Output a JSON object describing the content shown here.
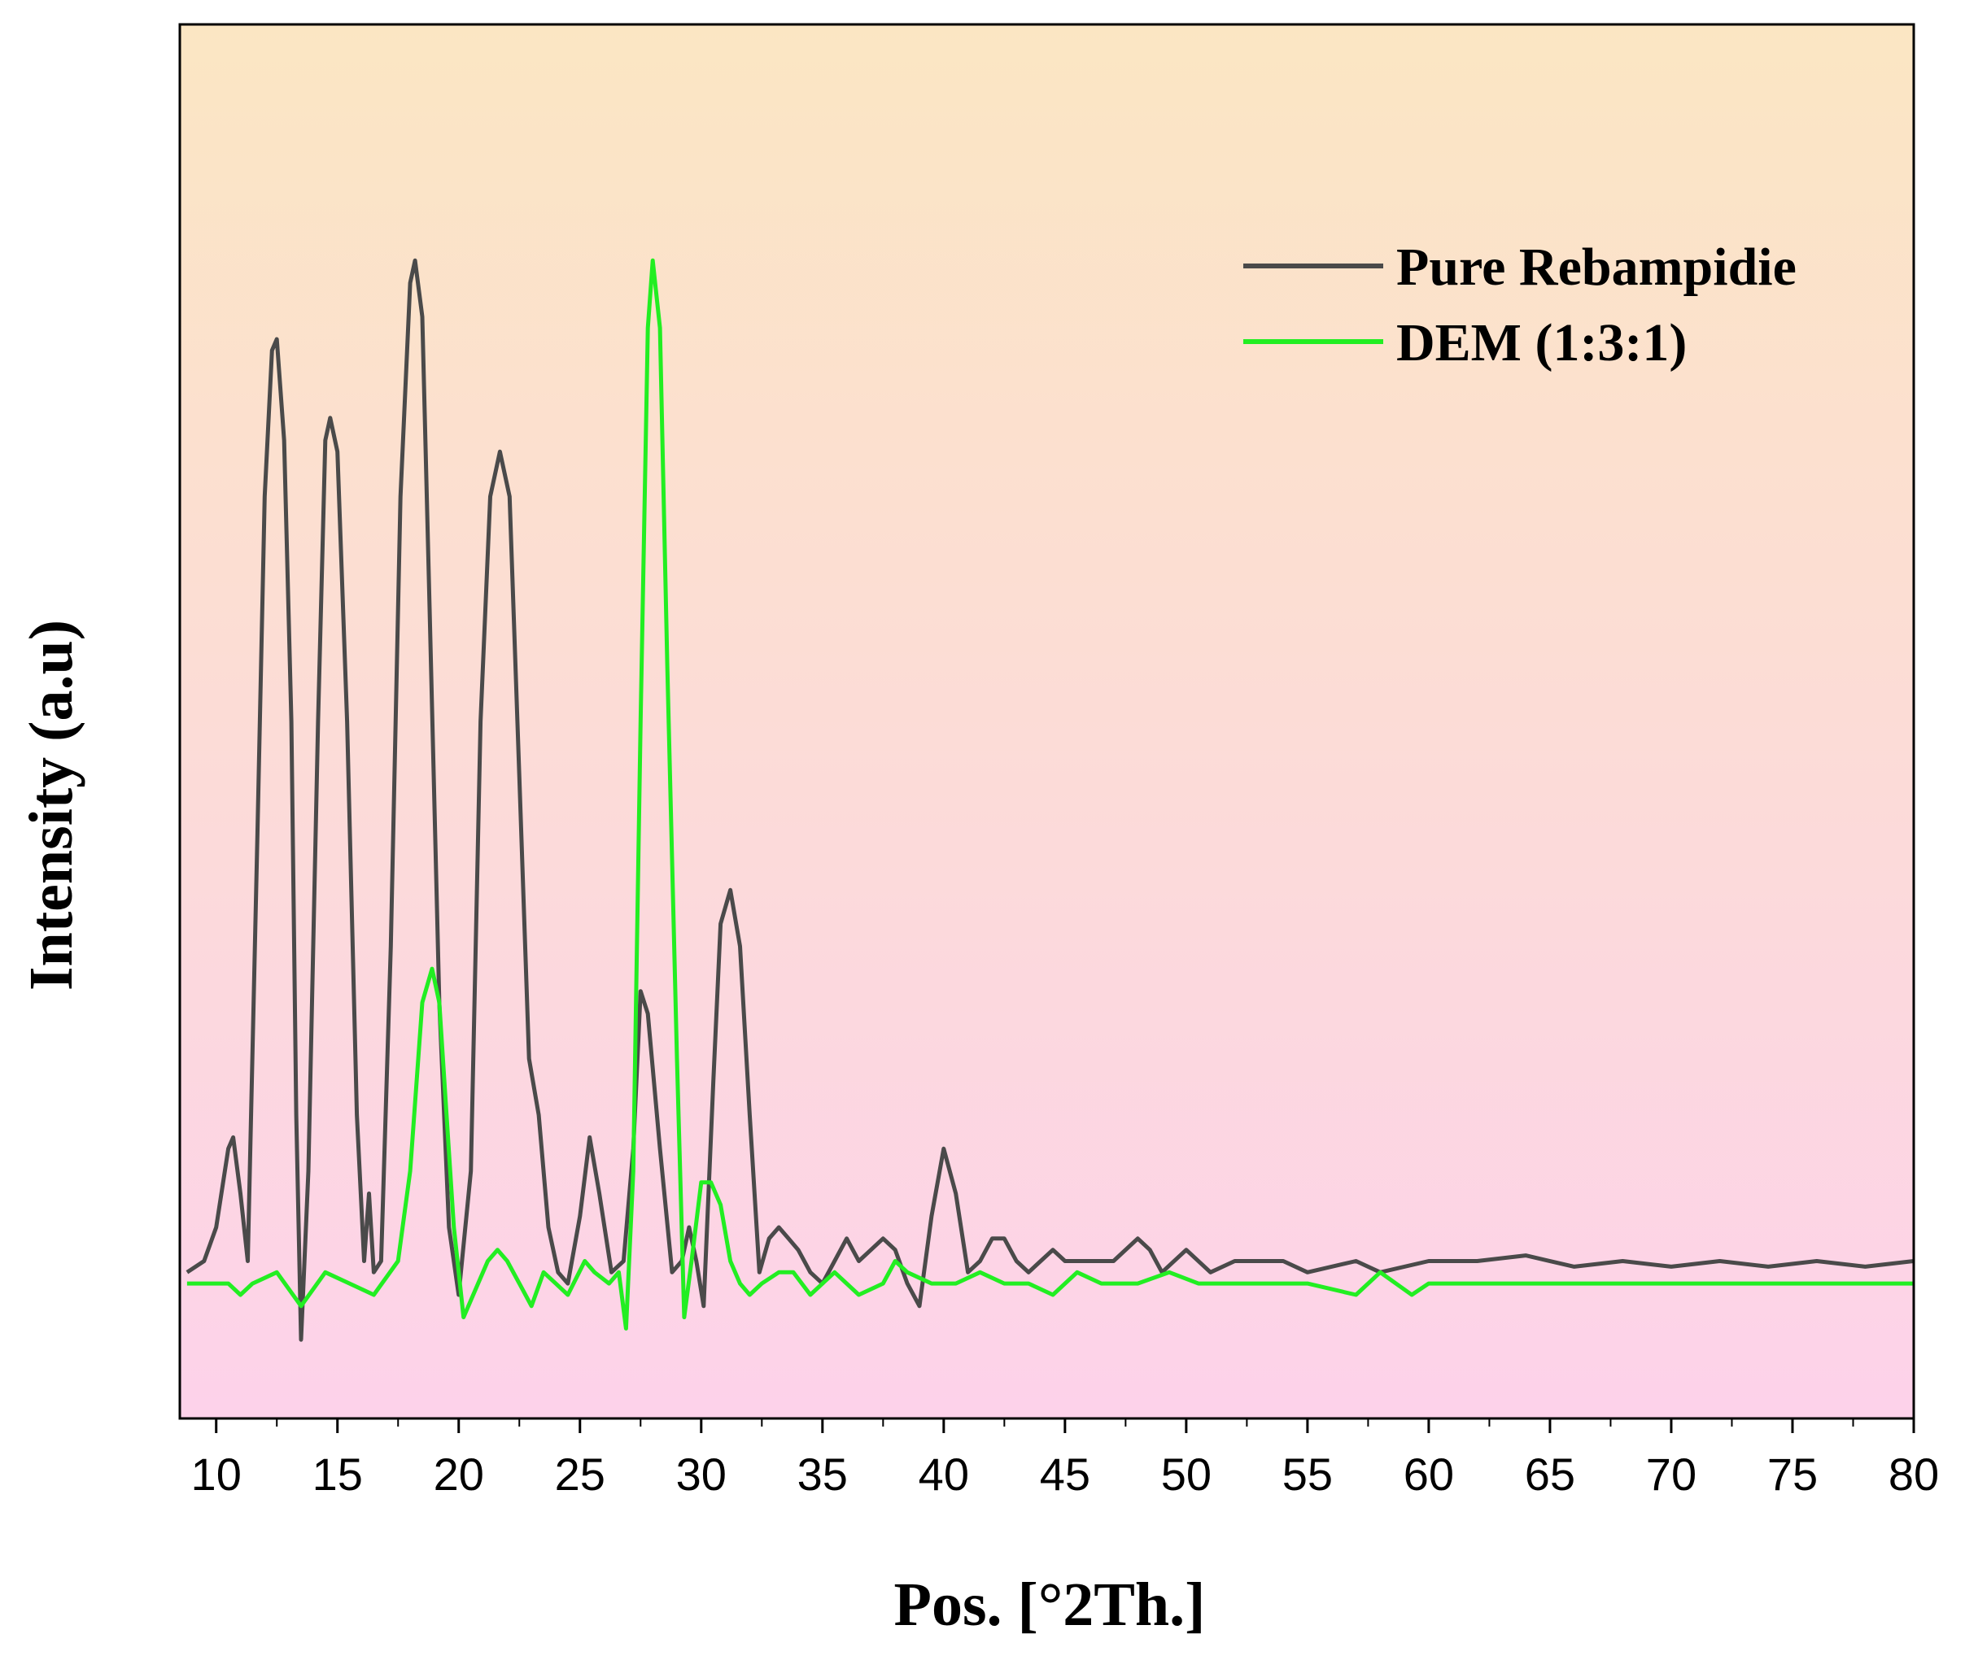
{
  "chart_data": {
    "type": "line",
    "title": "",
    "xlabel": "Pos. [°2Th.]",
    "ylabel": "Intensity (a.u)",
    "xlim": [
      8.5,
      80
    ],
    "ylim": [
      -0.12,
      1.12
    ],
    "x_ticks": [
      "10",
      "15",
      "20",
      "25",
      "30",
      "35",
      "40",
      "45",
      "50",
      "55",
      "60",
      "65",
      "70",
      "75",
      "80"
    ],
    "y_ticks_shown": false,
    "grid": false,
    "legend_position": "top-right",
    "background": {
      "top_color": "#fbe6c3",
      "bottom_color": "#fdd2ea"
    },
    "series": [
      {
        "name": "Pure Rebampidie",
        "color": "#4a4a4a",
        "points": [
          [
            8.8,
            0.01
          ],
          [
            9.5,
            0.02
          ],
          [
            10.0,
            0.05
          ],
          [
            10.5,
            0.12
          ],
          [
            10.7,
            0.13
          ],
          [
            11.0,
            0.08
          ],
          [
            11.3,
            0.02
          ],
          [
            11.7,
            0.4
          ],
          [
            12.0,
            0.7
          ],
          [
            12.3,
            0.83
          ],
          [
            12.5,
            0.84
          ],
          [
            12.8,
            0.75
          ],
          [
            13.1,
            0.5
          ],
          [
            13.3,
            0.15
          ],
          [
            13.5,
            -0.05
          ],
          [
            13.8,
            0.1
          ],
          [
            14.2,
            0.5
          ],
          [
            14.5,
            0.75
          ],
          [
            14.7,
            0.77
          ],
          [
            15.0,
            0.74
          ],
          [
            15.4,
            0.5
          ],
          [
            15.8,
            0.15
          ],
          [
            16.1,
            0.02
          ],
          [
            16.3,
            0.08
          ],
          [
            16.5,
            0.01
          ],
          [
            16.8,
            0.02
          ],
          [
            17.2,
            0.3
          ],
          [
            17.6,
            0.7
          ],
          [
            18.0,
            0.89
          ],
          [
            18.2,
            0.91
          ],
          [
            18.5,
            0.86
          ],
          [
            18.8,
            0.6
          ],
          [
            19.2,
            0.25
          ],
          [
            19.6,
            0.05
          ],
          [
            20.0,
            -0.01
          ],
          [
            20.5,
            0.1
          ],
          [
            20.9,
            0.5
          ],
          [
            21.3,
            0.7
          ],
          [
            21.7,
            0.74
          ],
          [
            22.1,
            0.7
          ],
          [
            22.5,
            0.45
          ],
          [
            22.9,
            0.2
          ],
          [
            23.3,
            0.15
          ],
          [
            23.7,
            0.05
          ],
          [
            24.1,
            0.01
          ],
          [
            24.5,
            0.0
          ],
          [
            25.0,
            0.06
          ],
          [
            25.4,
            0.13
          ],
          [
            25.8,
            0.08
          ],
          [
            26.3,
            0.01
          ],
          [
            26.8,
            0.02
          ],
          [
            27.2,
            0.12
          ],
          [
            27.5,
            0.26
          ],
          [
            27.8,
            0.24
          ],
          [
            28.3,
            0.12
          ],
          [
            28.8,
            0.01
          ],
          [
            29.2,
            0.02
          ],
          [
            29.5,
            0.05
          ],
          [
            29.8,
            0.02
          ],
          [
            30.1,
            -0.02
          ],
          [
            30.5,
            0.18
          ],
          [
            30.8,
            0.32
          ],
          [
            31.2,
            0.35
          ],
          [
            31.6,
            0.3
          ],
          [
            32.0,
            0.15
          ],
          [
            32.4,
            0.01
          ],
          [
            32.8,
            0.04
          ],
          [
            33.2,
            0.05
          ],
          [
            33.6,
            0.04
          ],
          [
            34.0,
            0.03
          ],
          [
            34.5,
            0.01
          ],
          [
            35.0,
            0.0
          ],
          [
            35.5,
            0.02
          ],
          [
            36.0,
            0.04
          ],
          [
            36.5,
            0.02
          ],
          [
            37.0,
            0.03
          ],
          [
            37.5,
            0.04
          ],
          [
            38.0,
            0.03
          ],
          [
            38.5,
            0.0
          ],
          [
            39.0,
            -0.02
          ],
          [
            39.5,
            0.06
          ],
          [
            40.0,
            0.12
          ],
          [
            40.5,
            0.08
          ],
          [
            41.0,
            0.01
          ],
          [
            41.5,
            0.02
          ],
          [
            42.0,
            0.04
          ],
          [
            42.5,
            0.04
          ],
          [
            43.0,
            0.02
          ],
          [
            43.5,
            0.01
          ],
          [
            44.0,
            0.02
          ],
          [
            44.5,
            0.03
          ],
          [
            45.0,
            0.02
          ],
          [
            46.0,
            0.02
          ],
          [
            47.0,
            0.02
          ],
          [
            48.0,
            0.04
          ],
          [
            48.5,
            0.03
          ],
          [
            49.0,
            0.01
          ],
          [
            50.0,
            0.03
          ],
          [
            51.0,
            0.01
          ],
          [
            52.0,
            0.02
          ],
          [
            54.0,
            0.02
          ],
          [
            55.0,
            0.01
          ],
          [
            57.0,
            0.02
          ],
          [
            58.0,
            0.01
          ],
          [
            60.0,
            0.02
          ],
          [
            62.0,
            0.02
          ],
          [
            64.0,
            0.025
          ],
          [
            66.0,
            0.015
          ],
          [
            68.0,
            0.02
          ],
          [
            70.0,
            0.015
          ],
          [
            72.0,
            0.02
          ],
          [
            74.0,
            0.015
          ],
          [
            76.0,
            0.02
          ],
          [
            78.0,
            0.015
          ],
          [
            80.0,
            0.02
          ]
        ]
      },
      {
        "name": "DEM (1:3:1)",
        "color": "#22ee22",
        "points": [
          [
            8.8,
            0.0
          ],
          [
            10.5,
            0.0
          ],
          [
            11.0,
            -0.01
          ],
          [
            11.5,
            0.0
          ],
          [
            12.5,
            0.01
          ],
          [
            13.5,
            -0.02
          ],
          [
            14.5,
            0.01
          ],
          [
            15.5,
            0.0
          ],
          [
            16.5,
            -0.01
          ],
          [
            17.5,
            0.02
          ],
          [
            18.0,
            0.1
          ],
          [
            18.5,
            0.25
          ],
          [
            18.9,
            0.28
          ],
          [
            19.2,
            0.25
          ],
          [
            19.5,
            0.15
          ],
          [
            19.8,
            0.05
          ],
          [
            20.2,
            -0.03
          ],
          [
            20.6,
            -0.01
          ],
          [
            21.2,
            0.02
          ],
          [
            21.6,
            0.03
          ],
          [
            22.0,
            0.02
          ],
          [
            22.5,
            0.0
          ],
          [
            23.0,
            -0.02
          ],
          [
            23.5,
            0.01
          ],
          [
            24.0,
            0.0
          ],
          [
            24.5,
            -0.01
          ],
          [
            25.2,
            0.02
          ],
          [
            25.6,
            0.01
          ],
          [
            26.2,
            0.0
          ],
          [
            26.6,
            0.01
          ],
          [
            26.9,
            -0.04
          ],
          [
            27.2,
            0.1
          ],
          [
            27.5,
            0.5
          ],
          [
            27.8,
            0.85
          ],
          [
            28.0,
            0.91
          ],
          [
            28.3,
            0.85
          ],
          [
            28.6,
            0.55
          ],
          [
            29.0,
            0.2
          ],
          [
            29.3,
            -0.03
          ],
          [
            29.6,
            0.02
          ],
          [
            30.0,
            0.09
          ],
          [
            30.4,
            0.09
          ],
          [
            30.8,
            0.07
          ],
          [
            31.2,
            0.02
          ],
          [
            31.6,
            0.0
          ],
          [
            32.0,
            -0.01
          ],
          [
            32.5,
            0.0
          ],
          [
            33.2,
            0.01
          ],
          [
            33.8,
            0.01
          ],
          [
            34.5,
            -0.01
          ],
          [
            35.5,
            0.01
          ],
          [
            36.5,
            -0.01
          ],
          [
            37.5,
            0.0
          ],
          [
            38.0,
            0.02
          ],
          [
            38.5,
            0.01
          ],
          [
            39.5,
            0.0
          ],
          [
            40.5,
            0.0
          ],
          [
            41.5,
            0.01
          ],
          [
            42.5,
            0.0
          ],
          [
            43.5,
            0.0
          ],
          [
            44.5,
            -0.01
          ],
          [
            45.5,
            0.01
          ],
          [
            46.5,
            0.0
          ],
          [
            48.0,
            0.0
          ],
          [
            49.3,
            0.01
          ],
          [
            50.5,
            0.0
          ],
          [
            55.0,
            0.0
          ],
          [
            57.0,
            -0.01
          ],
          [
            58.0,
            0.01
          ],
          [
            59.3,
            -0.01
          ],
          [
            60.0,
            0.0
          ],
          [
            65.0,
            0.0
          ],
          [
            70.0,
            0.0
          ],
          [
            75.0,
            0.0
          ],
          [
            80.0,
            0.0
          ]
        ]
      }
    ]
  }
}
